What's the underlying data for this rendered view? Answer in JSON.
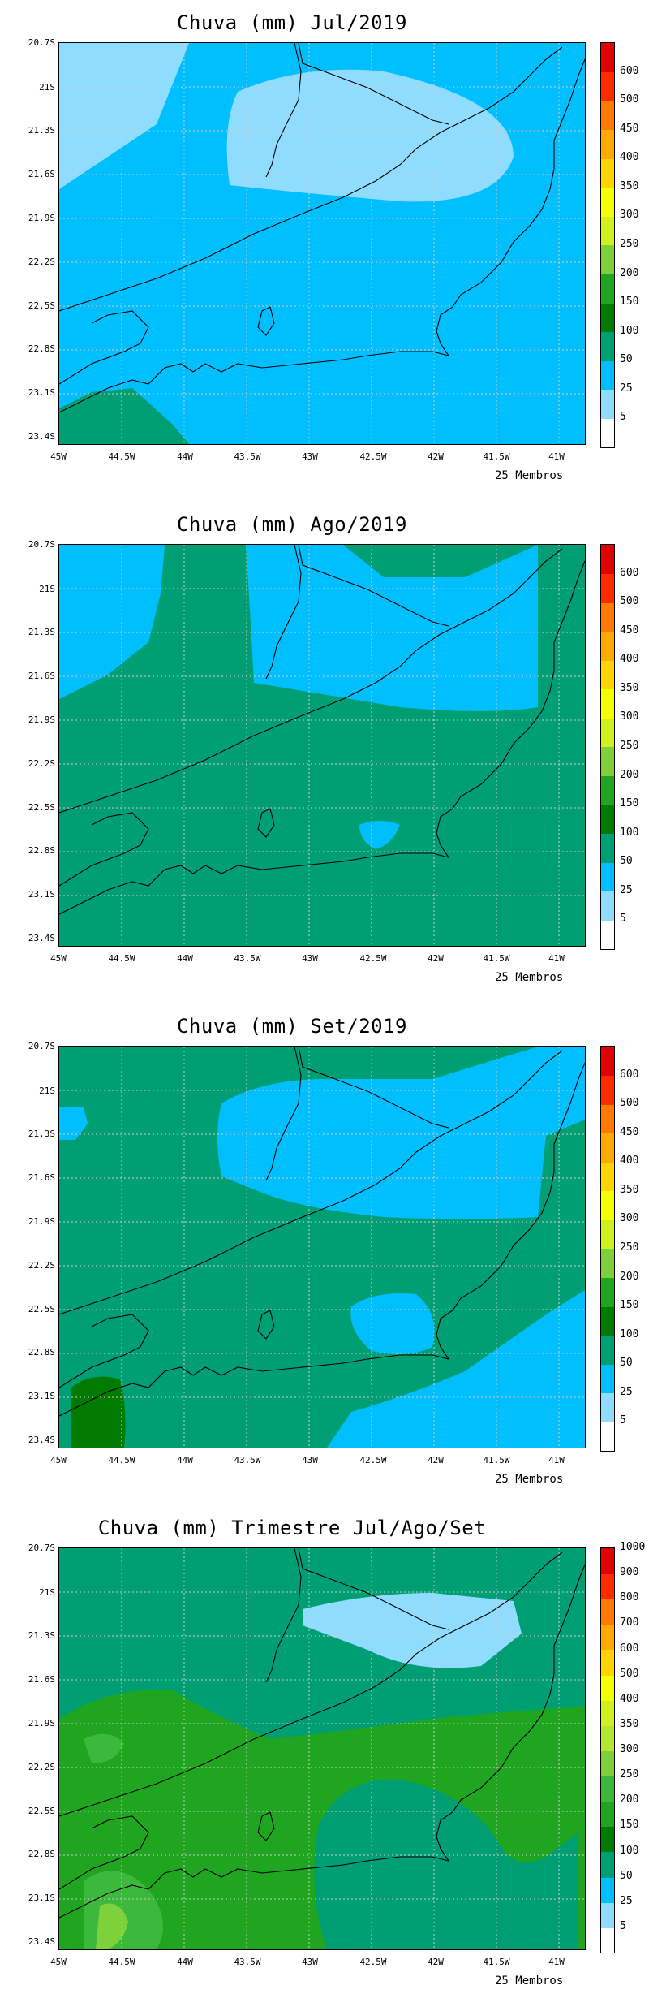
{
  "panels": [
    {
      "title": "Chuva (mm) Jul/2019",
      "members": "25 Membros",
      "lat_labels": [
        "20.7S",
        "21S",
        "21.3S",
        "21.6S",
        "21.9S",
        "22.2S",
        "22.5S",
        "22.8S",
        "23.1S",
        "23.4S"
      ],
      "lon_labels": [
        "45W",
        "44.5W",
        "44W",
        "43.5W",
        "43W",
        "42.5W",
        "42W",
        "41.5W",
        "41W"
      ],
      "colorbar": {
        "labels": [
          "5",
          "25",
          "50",
          "100",
          "150",
          "200",
          "250",
          "300",
          "350",
          "400",
          "450",
          "500",
          "600"
        ],
        "colors": [
          "#ffffff",
          "#8fdcff",
          "#00bfff",
          "#009e73",
          "#007a00",
          "#1fa51f",
          "#7fd13b",
          "#d0f020",
          "#f6ff00",
          "#ffd400",
          "#ffaa00",
          "#ff7a00",
          "#ff2a00",
          "#e00000"
        ]
      },
      "fields": {
        "base": "#00bfff",
        "patches": [
          "#8fdcff",
          "#8fdcff",
          "#009e73"
        ]
      }
    },
    {
      "title": "Chuva (mm) Ago/2019",
      "members": "25 Membros",
      "lat_labels": [
        "20.7S",
        "21S",
        "21.3S",
        "21.6S",
        "21.9S",
        "22.2S",
        "22.5S",
        "22.8S",
        "23.1S",
        "23.4S"
      ],
      "lon_labels": [
        "45W",
        "44.5W",
        "44W",
        "43.5W",
        "43W",
        "42.5W",
        "42W",
        "41.5W",
        "41W"
      ],
      "colorbar": {
        "labels": [
          "5",
          "25",
          "50",
          "100",
          "150",
          "200",
          "250",
          "300",
          "350",
          "400",
          "450",
          "500",
          "600"
        ],
        "colors": [
          "#ffffff",
          "#8fdcff",
          "#00bfff",
          "#009e73",
          "#007a00",
          "#1fa51f",
          "#7fd13b",
          "#d0f020",
          "#f6ff00",
          "#ffd400",
          "#ffaa00",
          "#ff7a00",
          "#ff2a00",
          "#e00000"
        ]
      },
      "fields": {
        "base": "#009e73",
        "patches": [
          "#00bfff",
          "#00bfff",
          "#00bfff"
        ]
      }
    },
    {
      "title": "Chuva (mm) Set/2019",
      "members": "25 Membros",
      "lat_labels": [
        "20.7S",
        "21S",
        "21.3S",
        "21.6S",
        "21.9S",
        "22.2S",
        "22.5S",
        "22.8S",
        "23.1S",
        "23.4S"
      ],
      "lon_labels": [
        "45W",
        "44.5W",
        "44W",
        "43.5W",
        "43W",
        "42.5W",
        "42W",
        "41.5W",
        "41W"
      ],
      "colorbar": {
        "labels": [
          "5",
          "25",
          "50",
          "100",
          "150",
          "200",
          "250",
          "300",
          "350",
          "400",
          "450",
          "500",
          "600"
        ],
        "colors": [
          "#ffffff",
          "#8fdcff",
          "#00bfff",
          "#009e73",
          "#007a00",
          "#1fa51f",
          "#7fd13b",
          "#d0f020",
          "#f6ff00",
          "#ffd400",
          "#ffaa00",
          "#ff7a00",
          "#ff2a00",
          "#e00000"
        ]
      },
      "fields": {
        "base": "#009e73",
        "patches": [
          "#00bfff",
          "#00bfff",
          "#00bfff",
          "#007a00"
        ]
      }
    },
    {
      "title": "Chuva (mm) Trimestre Jul/Ago/Set",
      "members": "25 Membros",
      "lat_labels": [
        "20.7S",
        "21S",
        "21.3S",
        "21.6S",
        "21.9S",
        "22.2S",
        "22.5S",
        "22.8S",
        "23.1S",
        "23.4S"
      ],
      "lon_labels": [
        "45W",
        "44.5W",
        "44W",
        "43.5W",
        "43W",
        "42.5W",
        "42W",
        "41.5W",
        "41W"
      ],
      "colorbar": {
        "labels": [
          "5",
          "25",
          "50",
          "100",
          "150",
          "200",
          "250",
          "300",
          "350",
          "400",
          "500",
          "600",
          "700",
          "800",
          "900",
          "1000"
        ],
        "colors": [
          "#ffffff",
          "#8fdcff",
          "#00bfff",
          "#009e73",
          "#007a00",
          "#1fa51f",
          "#3cb83c",
          "#7fd13b",
          "#b4e634",
          "#d0f020",
          "#f6ff00",
          "#ffd400",
          "#ffaa00",
          "#ff7a00",
          "#ff2a00",
          "#e00000"
        ]
      },
      "fields": {
        "base": "#009e73",
        "patches": [
          "#1fa51f",
          "#8fdcff",
          "#3cb83c"
        ]
      }
    }
  ]
}
